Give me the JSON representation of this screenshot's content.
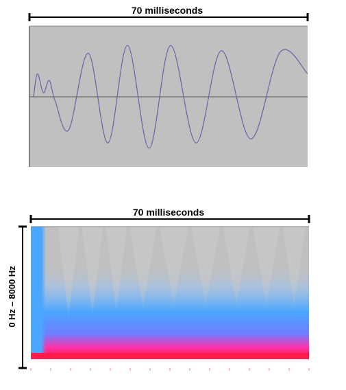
{
  "chart_data": [
    {
      "type": "line",
      "title": "70 milliseconds",
      "x_unit": "ms",
      "xlim": [
        0,
        70
      ],
      "ylim": [
        -1,
        1
      ],
      "grid": false,
      "center_line": true,
      "description_values": {
        "x": [
          0,
          1,
          2.5,
          4,
          5.5,
          9,
          14,
          19,
          24,
          29.5,
          35,
          41.5,
          48,
          55.5,
          63,
          70
        ],
        "y": [
          0,
          0.35,
          0.06,
          0.25,
          -0.06,
          -0.5,
          0.66,
          -0.7,
          0.78,
          -0.78,
          0.78,
          -0.7,
          0.7,
          -0.64,
          0.68,
          0.35
        ]
      },
      "colors": {
        "background": "#c0c0c0",
        "waveform": "#6a6aaa",
        "center_line": "#555555"
      }
    },
    {
      "type": "heatmap",
      "title": "70 milliseconds",
      "ylabel": "0 Hz – 8000 Hz",
      "x_unit": "ms",
      "xlim": [
        0,
        70
      ],
      "ylim": [
        0,
        8000
      ],
      "y_unit": "Hz",
      "pulse_times_ms": [
        6.5,
        12.5,
        18.5,
        24.5,
        32,
        40,
        48,
        55.5,
        63,
        69.5
      ],
      "colors": {
        "background": "#c0c0c0",
        "low": "#4aa6ff",
        "mid": "#ff33aa",
        "high": "#ff1c4c",
        "peak": "#ffffff"
      }
    }
  ]
}
